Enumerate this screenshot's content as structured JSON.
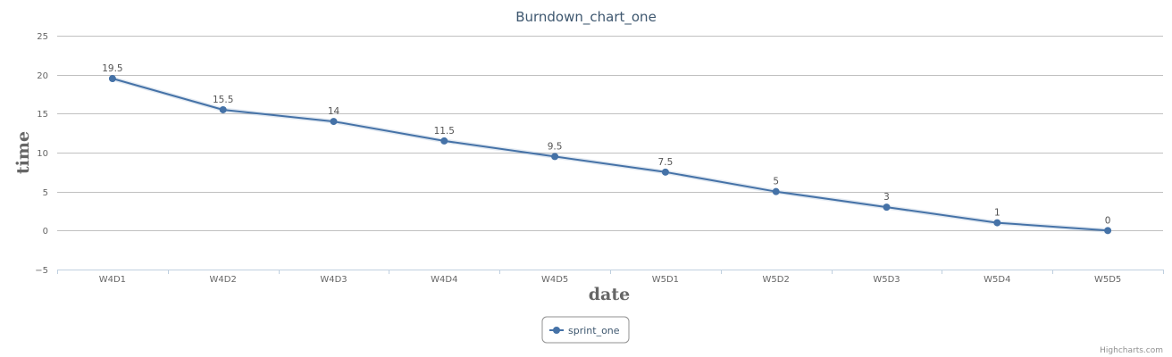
{
  "chart_data": {
    "type": "line",
    "title": "Burndown_chart_one",
    "xlabel": "date",
    "ylabel": "time",
    "categories": [
      "W4D1",
      "W4D2",
      "W4D3",
      "W4D4",
      "W4D5",
      "W5D1",
      "W5D2",
      "W5D3",
      "W5D4",
      "W5D5"
    ],
    "ylim": [
      -5,
      25
    ],
    "yticks": [
      -5,
      0,
      5,
      10,
      15,
      20,
      25
    ],
    "grid": true,
    "legend_position": "bottom-center",
    "series": [
      {
        "name": "sprint_one",
        "color": "#4572a7",
        "values": [
          19.5,
          15.5,
          14,
          11.5,
          9.5,
          7.5,
          5,
          3,
          1,
          0
        ],
        "data_labels": [
          "19.5",
          "15.5",
          "14",
          "11.5",
          "9.5",
          "7.5",
          "5",
          "3",
          "1",
          "0"
        ]
      }
    ]
  },
  "credits": {
    "text": "Highcharts.com"
  },
  "colors": {
    "grid": "#c0c0c0",
    "axis": "#c0d0e0",
    "text": "#666666",
    "title": "#3e576f"
  }
}
